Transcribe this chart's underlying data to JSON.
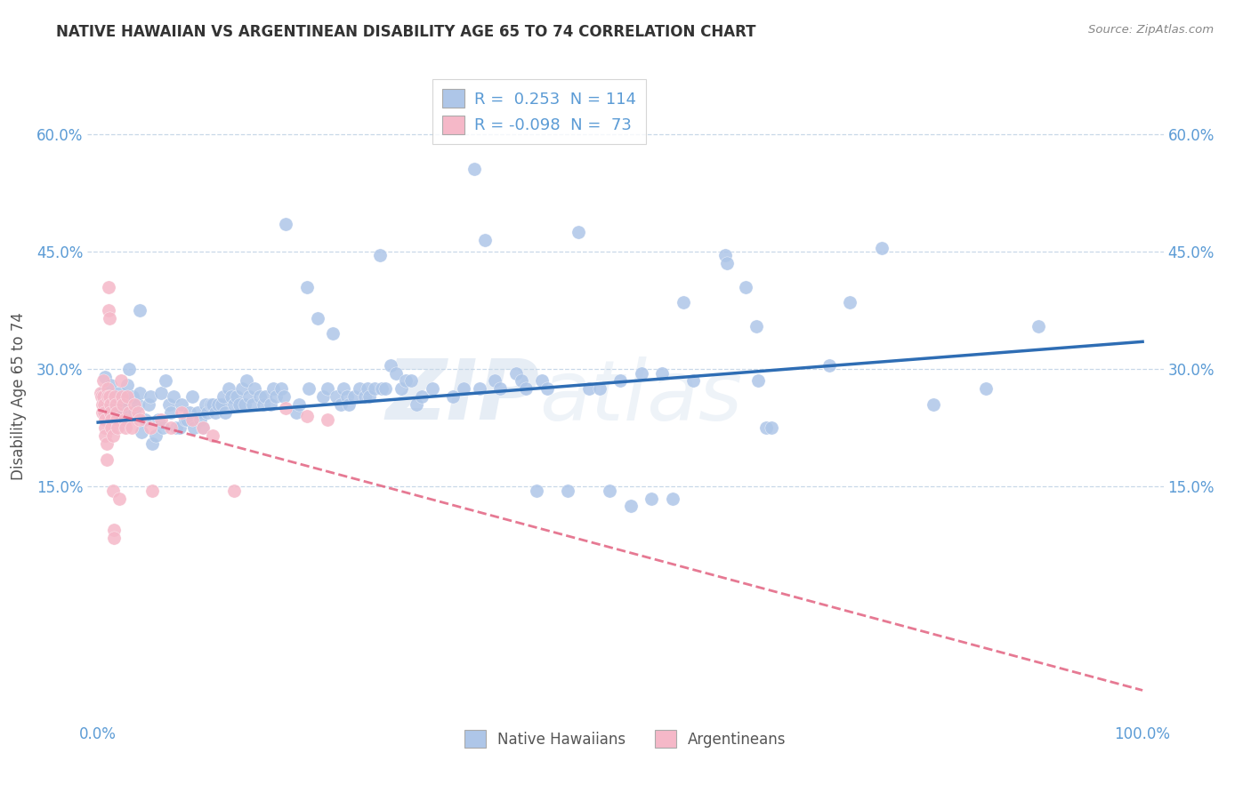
{
  "title": "NATIVE HAWAIIAN VS ARGENTINEAN DISABILITY AGE 65 TO 74 CORRELATION CHART",
  "source": "Source: ZipAtlas.com",
  "ylabel_label": "Disability Age 65 to 74",
  "ytick_labels": [
    "15.0%",
    "30.0%",
    "45.0%",
    "60.0%"
  ],
  "ytick_values": [
    0.15,
    0.3,
    0.45,
    0.6
  ],
  "xlim": [
    -0.01,
    1.02
  ],
  "ylim": [
    -0.15,
    0.68
  ],
  "legend_R_blue": " 0.253",
  "legend_N_blue": "114",
  "legend_R_pink": "-0.098",
  "legend_N_pink": " 73",
  "blue_color": "#aec6e8",
  "pink_color": "#f5b8c8",
  "line_blue": "#2e6db4",
  "line_pink": "#e05878",
  "watermark_top": "ZIP",
  "watermark_bot": "atlas",
  "blue_scatter": [
    [
      0.005,
      0.27
    ],
    [
      0.007,
      0.29
    ],
    [
      0.008,
      0.25
    ],
    [
      0.01,
      0.265
    ],
    [
      0.012,
      0.28
    ],
    [
      0.015,
      0.255
    ],
    [
      0.018,
      0.245
    ],
    [
      0.02,
      0.27
    ],
    [
      0.022,
      0.25
    ],
    [
      0.025,
      0.26
    ],
    [
      0.028,
      0.28
    ],
    [
      0.03,
      0.3
    ],
    [
      0.03,
      0.24
    ],
    [
      0.033,
      0.265
    ],
    [
      0.035,
      0.245
    ],
    [
      0.038,
      0.255
    ],
    [
      0.04,
      0.27
    ],
    [
      0.04,
      0.375
    ],
    [
      0.042,
      0.22
    ],
    [
      0.045,
      0.235
    ],
    [
      0.048,
      0.255
    ],
    [
      0.05,
      0.265
    ],
    [
      0.052,
      0.205
    ],
    [
      0.055,
      0.215
    ],
    [
      0.058,
      0.235
    ],
    [
      0.06,
      0.27
    ],
    [
      0.062,
      0.225
    ],
    [
      0.065,
      0.285
    ],
    [
      0.068,
      0.255
    ],
    [
      0.07,
      0.245
    ],
    [
      0.072,
      0.265
    ],
    [
      0.075,
      0.225
    ],
    [
      0.078,
      0.225
    ],
    [
      0.08,
      0.255
    ],
    [
      0.083,
      0.235
    ],
    [
      0.085,
      0.235
    ],
    [
      0.088,
      0.245
    ],
    [
      0.09,
      0.265
    ],
    [
      0.092,
      0.225
    ],
    [
      0.095,
      0.245
    ],
    [
      0.098,
      0.235
    ],
    [
      0.1,
      0.225
    ],
    [
      0.103,
      0.255
    ],
    [
      0.105,
      0.245
    ],
    [
      0.108,
      0.255
    ],
    [
      0.11,
      0.255
    ],
    [
      0.112,
      0.245
    ],
    [
      0.115,
      0.255
    ],
    [
      0.118,
      0.255
    ],
    [
      0.12,
      0.265
    ],
    [
      0.122,
      0.245
    ],
    [
      0.125,
      0.275
    ],
    [
      0.128,
      0.265
    ],
    [
      0.13,
      0.255
    ],
    [
      0.133,
      0.265
    ],
    [
      0.135,
      0.255
    ],
    [
      0.138,
      0.275
    ],
    [
      0.14,
      0.255
    ],
    [
      0.142,
      0.285
    ],
    [
      0.145,
      0.265
    ],
    [
      0.148,
      0.255
    ],
    [
      0.15,
      0.275
    ],
    [
      0.155,
      0.265
    ],
    [
      0.158,
      0.255
    ],
    [
      0.16,
      0.265
    ],
    [
      0.165,
      0.255
    ],
    [
      0.168,
      0.275
    ],
    [
      0.17,
      0.265
    ],
    [
      0.175,
      0.275
    ],
    [
      0.178,
      0.265
    ],
    [
      0.18,
      0.485
    ],
    [
      0.19,
      0.245
    ],
    [
      0.192,
      0.255
    ],
    [
      0.2,
      0.405
    ],
    [
      0.202,
      0.275
    ],
    [
      0.21,
      0.365
    ],
    [
      0.215,
      0.265
    ],
    [
      0.22,
      0.275
    ],
    [
      0.225,
      0.345
    ],
    [
      0.228,
      0.265
    ],
    [
      0.232,
      0.255
    ],
    [
      0.235,
      0.275
    ],
    [
      0.238,
      0.265
    ],
    [
      0.24,
      0.255
    ],
    [
      0.245,
      0.265
    ],
    [
      0.25,
      0.275
    ],
    [
      0.255,
      0.265
    ],
    [
      0.258,
      0.275
    ],
    [
      0.26,
      0.265
    ],
    [
      0.265,
      0.275
    ],
    [
      0.27,
      0.445
    ],
    [
      0.272,
      0.275
    ],
    [
      0.275,
      0.275
    ],
    [
      0.28,
      0.305
    ],
    [
      0.285,
      0.295
    ],
    [
      0.29,
      0.275
    ],
    [
      0.295,
      0.285
    ],
    [
      0.3,
      0.285
    ],
    [
      0.305,
      0.255
    ],
    [
      0.31,
      0.265
    ],
    [
      0.32,
      0.275
    ],
    [
      0.34,
      0.265
    ],
    [
      0.35,
      0.275
    ],
    [
      0.36,
      0.555
    ],
    [
      0.365,
      0.275
    ],
    [
      0.37,
      0.465
    ],
    [
      0.38,
      0.285
    ],
    [
      0.385,
      0.275
    ],
    [
      0.4,
      0.295
    ],
    [
      0.405,
      0.285
    ],
    [
      0.41,
      0.275
    ],
    [
      0.42,
      0.145
    ],
    [
      0.425,
      0.285
    ],
    [
      0.43,
      0.275
    ],
    [
      0.45,
      0.145
    ],
    [
      0.46,
      0.475
    ],
    [
      0.47,
      0.275
    ],
    [
      0.48,
      0.275
    ],
    [
      0.49,
      0.145
    ],
    [
      0.5,
      0.285
    ],
    [
      0.51,
      0.125
    ],
    [
      0.52,
      0.295
    ],
    [
      0.53,
      0.135
    ],
    [
      0.54,
      0.295
    ],
    [
      0.55,
      0.135
    ],
    [
      0.56,
      0.385
    ],
    [
      0.57,
      0.285
    ],
    [
      0.6,
      0.445
    ],
    [
      0.602,
      0.435
    ],
    [
      0.62,
      0.405
    ],
    [
      0.63,
      0.355
    ],
    [
      0.632,
      0.285
    ],
    [
      0.64,
      0.225
    ],
    [
      0.645,
      0.225
    ],
    [
      0.7,
      0.305
    ],
    [
      0.72,
      0.385
    ],
    [
      0.75,
      0.455
    ],
    [
      0.8,
      0.255
    ],
    [
      0.85,
      0.275
    ],
    [
      0.9,
      0.355
    ]
  ],
  "pink_scatter": [
    [
      0.002,
      0.27
    ],
    [
      0.003,
      0.265
    ],
    [
      0.004,
      0.255
    ],
    [
      0.004,
      0.245
    ],
    [
      0.005,
      0.285
    ],
    [
      0.005,
      0.265
    ],
    [
      0.006,
      0.255
    ],
    [
      0.006,
      0.245
    ],
    [
      0.007,
      0.235
    ],
    [
      0.007,
      0.225
    ],
    [
      0.007,
      0.215
    ],
    [
      0.008,
      0.205
    ],
    [
      0.008,
      0.185
    ],
    [
      0.009,
      0.275
    ],
    [
      0.009,
      0.265
    ],
    [
      0.01,
      0.405
    ],
    [
      0.01,
      0.375
    ],
    [
      0.011,
      0.365
    ],
    [
      0.011,
      0.265
    ],
    [
      0.012,
      0.255
    ],
    [
      0.012,
      0.245
    ],
    [
      0.013,
      0.235
    ],
    [
      0.013,
      0.225
    ],
    [
      0.014,
      0.215
    ],
    [
      0.014,
      0.145
    ],
    [
      0.015,
      0.095
    ],
    [
      0.015,
      0.085
    ],
    [
      0.016,
      0.265
    ],
    [
      0.017,
      0.255
    ],
    [
      0.018,
      0.245
    ],
    [
      0.018,
      0.235
    ],
    [
      0.019,
      0.225
    ],
    [
      0.02,
      0.135
    ],
    [
      0.022,
      0.285
    ],
    [
      0.023,
      0.265
    ],
    [
      0.024,
      0.255
    ],
    [
      0.025,
      0.235
    ],
    [
      0.026,
      0.225
    ],
    [
      0.028,
      0.265
    ],
    [
      0.03,
      0.245
    ],
    [
      0.032,
      0.225
    ],
    [
      0.035,
      0.255
    ],
    [
      0.038,
      0.245
    ],
    [
      0.04,
      0.235
    ],
    [
      0.05,
      0.225
    ],
    [
      0.052,
      0.145
    ],
    [
      0.06,
      0.235
    ],
    [
      0.07,
      0.225
    ],
    [
      0.08,
      0.245
    ],
    [
      0.09,
      0.235
    ],
    [
      0.1,
      0.225
    ],
    [
      0.11,
      0.215
    ],
    [
      0.13,
      0.145
    ],
    [
      0.18,
      0.25
    ],
    [
      0.2,
      0.24
    ],
    [
      0.22,
      0.235
    ]
  ],
  "blue_trend": [
    0.0,
    1.0,
    0.232,
    0.335
  ],
  "pink_trend": [
    0.0,
    1.0,
    0.248,
    -0.11
  ]
}
